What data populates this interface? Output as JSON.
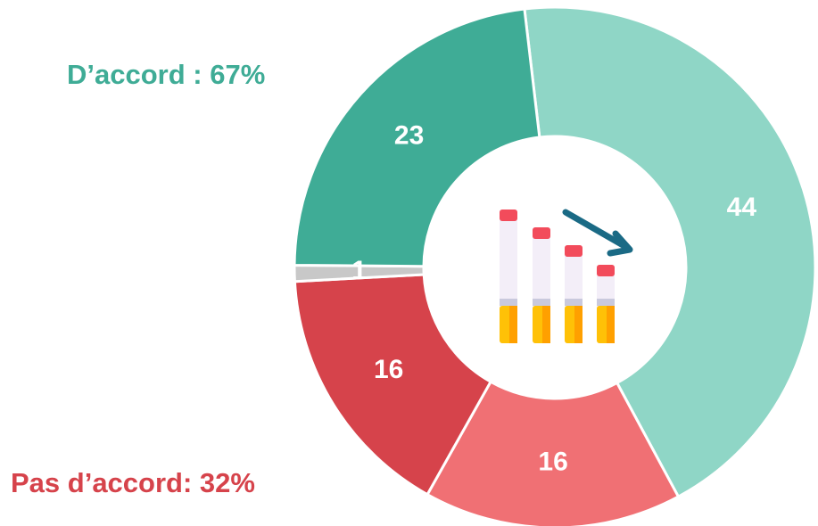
{
  "chart_data": {
    "type": "pie",
    "donut": true,
    "values": [
      44,
      16,
      16,
      1,
      23
    ],
    "colors": [
      "#8fd6c6",
      "#f07074",
      "#d6434b",
      "#c8c8c8",
      "#3fac96"
    ],
    "annotations": [
      {
        "text": "D’accord : 67%",
        "color": "#3fac96"
      },
      {
        "text": "Pas d’accord: 32%",
        "color": "#d6434b"
      }
    ]
  }
}
